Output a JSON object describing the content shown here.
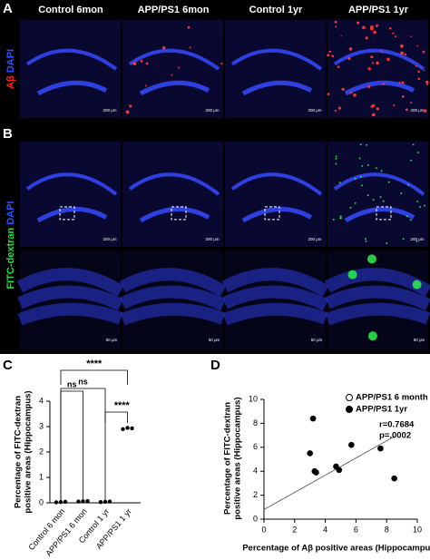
{
  "figure": {
    "panel_labels": [
      "A",
      "B",
      "C",
      "D"
    ],
    "column_headers": [
      "Control 6mon",
      "APP/PS1 6mon",
      "Control 1yr",
      "APP/PS1 1yr"
    ],
    "row_a_label": [
      "Aβ",
      "DAPI"
    ],
    "row_b_label": [
      "FITC-dextran",
      "DAPI"
    ],
    "scale_bar_large": "200 μm",
    "scale_bar_small": "50 μm"
  },
  "chart_data": [
    {
      "type": "dot",
      "y_label": [
        "Percentage of FITC-dextran",
        "positive areas (Hippocampus)"
      ],
      "categories": [
        "Control 6 mon",
        "APP/PS1 6 mon",
        "Control 1 yr",
        "APP/PS1 1 yr"
      ],
      "values": [
        [
          0.02,
          0.03,
          0.04
        ],
        [
          0.05,
          0.06,
          0.07
        ],
        [
          0.03,
          0.04,
          0.05
        ],
        [
          2.9,
          2.95,
          2.93
        ]
      ],
      "color": "#000000",
      "ylim": [
        0,
        4
      ],
      "yticks": [
        0,
        1,
        2,
        3,
        4
      ],
      "significance": [
        "****",
        "ns",
        "ns",
        "****"
      ]
    },
    {
      "type": "scatter",
      "x_label": "Percentage of Aβ positive areas (Hippocampus)",
      "y_label": [
        "Percentage of FITC-dextran",
        "positive areas (Hippocampus)"
      ],
      "series": [
        {
          "name": "APP/PS1 6 month",
          "color": "#ffffff",
          "x": [],
          "y": []
        },
        {
          "name": "APP/PS1 1yr",
          "color": "#000000",
          "x": [
            3.0,
            3.2,
            3.3,
            3.4,
            4.7,
            4.9,
            5.7,
            7.6,
            8.5
          ],
          "y": [
            5.5,
            8.4,
            4.0,
            3.9,
            4.4,
            4.1,
            6.2,
            5.9,
            3.4
          ]
        }
      ],
      "fit_line": {
        "x": [
          0,
          8.5
        ],
        "y": [
          0.8,
          6.9
        ]
      },
      "annotations": [
        "r=0.7684",
        "p=.0002"
      ],
      "xlim": [
        0,
        10
      ],
      "xticks": [
        0,
        2,
        4,
        6,
        8,
        10
      ],
      "ylim": [
        0,
        10
      ],
      "yticks": [
        0,
        2,
        4,
        6,
        8,
        10
      ]
    }
  ]
}
